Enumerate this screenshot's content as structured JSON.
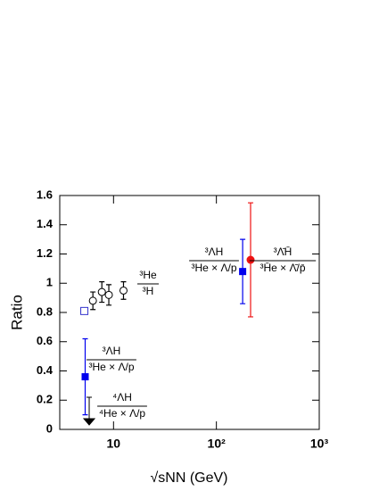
{
  "chart_data": {
    "type": "scatter",
    "xlabel": "√sNN (GeV)",
    "ylabel": "Ratio",
    "xscale": "log",
    "xlim": [
      3,
      1000
    ],
    "ylim": [
      0,
      1.6
    ],
    "xticks": [
      10,
      {
        "value": 100,
        "label": "10²"
      },
      {
        "value": 1000,
        "label": "10³"
      }
    ],
    "yticks": [
      0,
      0.2,
      0.4,
      0.6,
      0.8,
      1,
      1.2,
      1.4,
      1.6
    ],
    "series": [
      {
        "marker": "open-circle",
        "color": "#000000",
        "x": [
          6.3,
          7.7,
          9.0,
          12.5
        ],
        "values": [
          0.88,
          0.94,
          0.92,
          0.95
        ],
        "errors": [
          0.06,
          0.07,
          0.07,
          0.06
        ]
      },
      {
        "marker": "open-square",
        "color": "#3333cc",
        "x": [
          5.2
        ],
        "values": [
          0.81
        ],
        "errors": [
          0.02
        ]
      },
      {
        "marker": "filled-square",
        "color": "#0000ee",
        "x": [
          5.3,
          180
        ],
        "values": [
          0.36,
          1.08
        ],
        "errors": [
          0.26,
          0.22
        ]
      },
      {
        "marker": "filled-circle",
        "color": "#ee1111",
        "x": [
          215
        ],
        "values": [
          1.16
        ],
        "errors": [
          0.39
        ]
      },
      {
        "marker": "upper-limit",
        "color": "#000000",
        "x": [
          5.8
        ],
        "values": [
          0.22
        ]
      }
    ],
    "annotations": [
      {
        "numerator": "³He",
        "denominator": "³H"
      },
      {
        "numerator": "³ΛH",
        "denominator": "³He × Λ/p"
      },
      {
        "numerator": "³Λ̄H̄",
        "denominator": "³H̄e × Λ̄/p̄"
      },
      {
        "numerator": "³ΛH",
        "denominator": "³He × Λ/p"
      },
      {
        "numerator": "⁴ΛH",
        "denominator": "⁴He × Λ/p"
      }
    ]
  }
}
